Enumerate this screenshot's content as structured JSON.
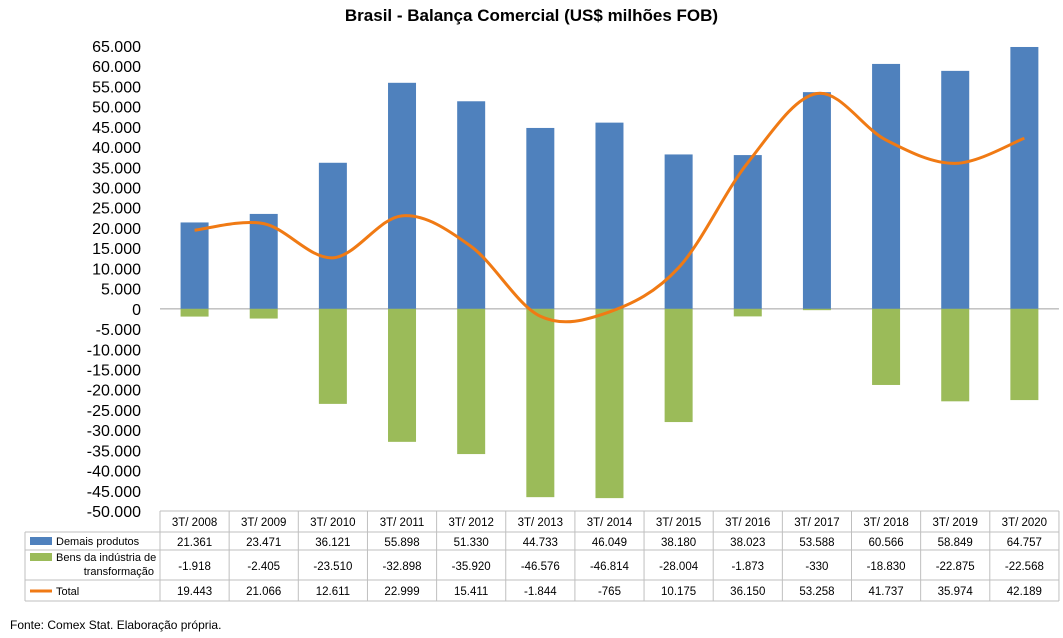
{
  "chart_data": {
    "type": "bar",
    "title": "Brasil - Balança Comercial (US$ milhões FOB)",
    "categories": [
      "3T/ 2008",
      "3T/ 2009",
      "3T/ 2010",
      "3T/ 2011",
      "3T/ 2012",
      "3T/ 2013",
      "3T/ 2014",
      "3T/ 2015",
      "3T/ 2016",
      "3T/ 2017",
      "3T/ 2018",
      "3T/ 2019",
      "3T/ 2020"
    ],
    "ylim": [
      -50000,
      65000
    ],
    "ytick_step": 5000,
    "ytick_labels": [
      "65.000",
      "60.000",
      "55.000",
      "50.000",
      "45.000",
      "40.000",
      "35.000",
      "30.000",
      "25.000",
      "20.000",
      "15.000",
      "10.000",
      "5.000",
      "0",
      "-5.000",
      "-10.000",
      "-15.000",
      "-20.000",
      "-25.000",
      "-30.000",
      "-35.000",
      "-40.000",
      "-45.000",
      "-50.000"
    ],
    "grid": false,
    "legend": "data-table",
    "series": [
      {
        "name": "Demais produtos",
        "type": "bar",
        "color": "#4F81BD",
        "values": [
          21361,
          23471,
          36121,
          55898,
          51330,
          44733,
          46049,
          38180,
          38023,
          53588,
          60566,
          58849,
          64757
        ],
        "labels": [
          "21.361",
          "23.471",
          "36.121",
          "55.898",
          "51.330",
          "44.733",
          "46.049",
          "38.180",
          "38.023",
          "53.588",
          "60.566",
          "58.849",
          "64.757"
        ]
      },
      {
        "name": "Bens da indústria de transformação",
        "name_lines": [
          "Bens da indústria de",
          "transformação"
        ],
        "type": "bar",
        "color": "#9BBB59",
        "values": [
          -1918,
          -2405,
          -23510,
          -32898,
          -35920,
          -46576,
          -46814,
          -28004,
          -1873,
          -330,
          -18830,
          -22875,
          -22568
        ],
        "labels": [
          "-1.918",
          "-2.405",
          "-23.510",
          "-32.898",
          "-35.920",
          "-46.576",
          "-46.814",
          "-28.004",
          "-1.873",
          "-330",
          "-18.830",
          "-22.875",
          "-22.568"
        ]
      },
      {
        "name": "Total",
        "type": "line",
        "color": "#F07A14",
        "values": [
          19443,
          21066,
          12611,
          22999,
          15411,
          -1844,
          -765,
          10175,
          36150,
          53258,
          41737,
          35974,
          42189
        ],
        "labels": [
          "19.443",
          "21.066",
          "12.611",
          "22.999",
          "15.411",
          "-1.844",
          "-765",
          "10.175",
          "36.150",
          "53.258",
          "41.737",
          "35.974",
          "42.189"
        ]
      }
    ]
  },
  "source": "Fonte: Comex Stat. Elaboração própria."
}
